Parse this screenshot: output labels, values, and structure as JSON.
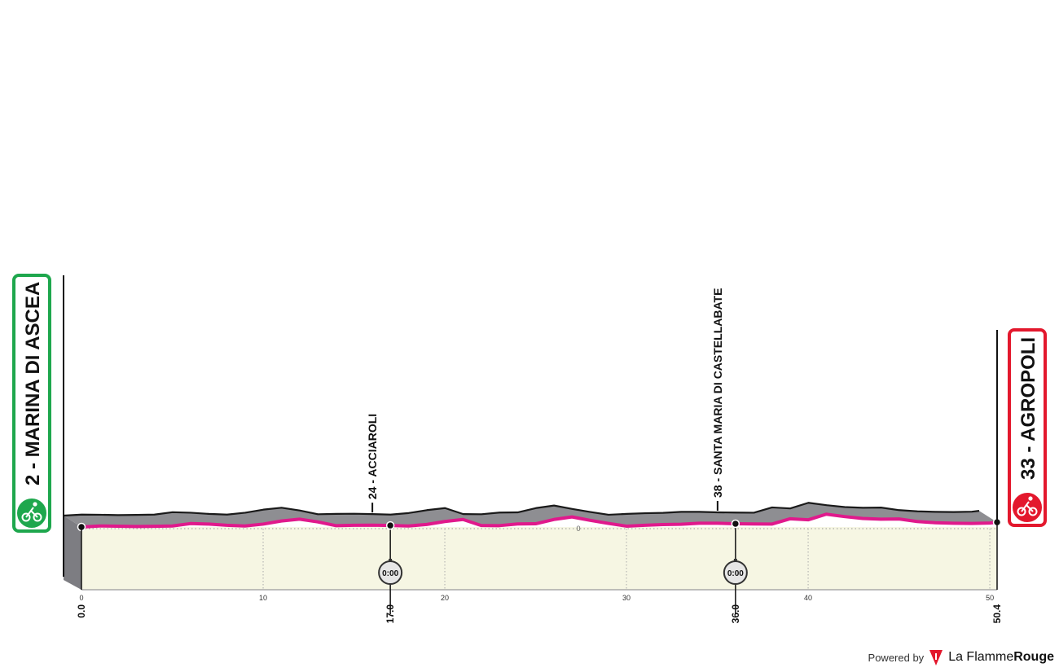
{
  "chart_data": {
    "type": "area",
    "x_unit": "km",
    "xlim": [
      0,
      50.4
    ],
    "x_ticks": [
      0,
      10,
      20,
      30,
      40,
      50
    ],
    "x_tick_labels": [
      "0",
      "10",
      "20",
      "30",
      "40",
      "50"
    ],
    "axis_zero_label": "0",
    "profile_km": [
      0,
      1,
      2,
      3,
      4,
      5,
      6,
      7,
      8,
      9,
      10,
      11,
      12,
      13,
      14,
      15,
      16,
      17,
      18,
      19,
      20,
      21,
      22,
      23,
      24,
      25,
      26,
      27,
      28,
      29,
      30,
      31,
      32,
      33,
      34,
      35,
      36,
      37,
      38,
      39,
      40,
      41,
      42,
      43,
      44,
      45,
      46,
      47,
      48,
      49,
      50,
      50.4
    ],
    "profile_elev": [
      0,
      0.6,
      0.5,
      0.3,
      0.4,
      0.6,
      2,
      1.7,
      1,
      0.6,
      1.7,
      3.5,
      4.6,
      3,
      0.8,
      1,
      1.1,
      0.9,
      0.6,
      1.5,
      3.2,
      4.4,
      0.9,
      0.8,
      1.8,
      1.9,
      4.4,
      5.9,
      3.9,
      2.1,
      0.5,
      1,
      1.4,
      1.6,
      2.2,
      2.2,
      1.9,
      1.8,
      1.7,
      4.8,
      4.2,
      7.5,
      6.1,
      5,
      4.6,
      4.7,
      3.2,
      2.5,
      2.2,
      2.1,
      2.3,
      2.8
    ],
    "places": [
      {
        "km": 0.0,
        "km_label": "0.0",
        "name": "2 - MARINA DI ASCEA",
        "type": "start",
        "color": "#1ea74d"
      },
      {
        "km": 17.0,
        "km_label": "17.0",
        "name": "24 - ACCIAROLI",
        "type": "intermediate",
        "timing": "0:00"
      },
      {
        "km": 36.0,
        "km_label": "36.0",
        "name": "38 - SANTA MARIA DI CASTELLABATE",
        "type": "intermediate",
        "timing": "0:00"
      },
      {
        "km": 50.4,
        "km_label": "50.4",
        "name": "33 - AGROPOLI",
        "type": "finish",
        "color": "#e3182d"
      }
    ],
    "colors": {
      "route": "#e0198c",
      "terrain_top": "#8e8e92",
      "terrain_side": "#b9b9bd",
      "ground": "#f6f6e3"
    }
  },
  "footer": {
    "powered_by": "Powered by",
    "brand_light": "La Flamme",
    "brand_bold": "Rouge",
    "brand_color": "#e3182d"
  }
}
